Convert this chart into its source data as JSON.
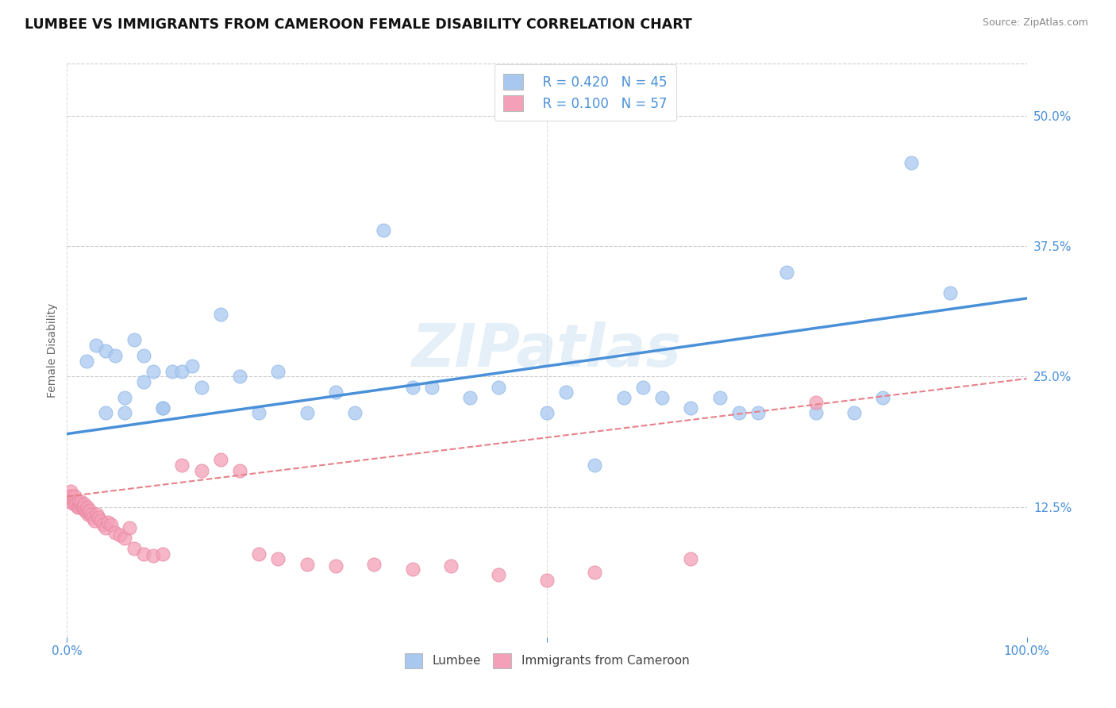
{
  "title": "LUMBEE VS IMMIGRANTS FROM CAMEROON FEMALE DISABILITY CORRELATION CHART",
  "source": "Source: ZipAtlas.com",
  "ylabel": "Female Disability",
  "ytick_labels": [
    "12.5%",
    "25.0%",
    "37.5%",
    "50.0%"
  ],
  "ytick_values": [
    0.125,
    0.25,
    0.375,
    0.5
  ],
  "xlim": [
    0.0,
    1.0
  ],
  "ylim": [
    0.0,
    0.55
  ],
  "legend_lumbee_R": "R = 0.420",
  "legend_lumbee_N": "N = 45",
  "legend_cameroon_R": "R = 0.100",
  "legend_cameroon_N": "N = 57",
  "lumbee_color": "#a8c8f0",
  "cameroon_color": "#f4a0b8",
  "lumbee_line_color": "#4a90d9",
  "cameroon_line_color": "#e8808a",
  "watermark": "ZIPatlas",
  "background_color": "#ffffff",
  "lumbee_x": [
    0.02,
    0.03,
    0.04,
    0.05,
    0.06,
    0.07,
    0.08,
    0.09,
    0.1,
    0.11,
    0.12,
    0.13,
    0.14,
    0.16,
    0.18,
    0.2,
    0.22,
    0.25,
    0.28,
    0.3,
    0.33,
    0.36,
    0.38,
    0.42,
    0.45,
    0.5,
    0.52,
    0.55,
    0.58,
    0.6,
    0.62,
    0.65,
    0.68,
    0.7,
    0.72,
    0.75,
    0.78,
    0.82,
    0.85,
    0.88,
    0.92,
    0.04,
    0.06,
    0.08,
    0.1
  ],
  "lumbee_y": [
    0.265,
    0.28,
    0.275,
    0.27,
    0.215,
    0.285,
    0.245,
    0.255,
    0.22,
    0.255,
    0.255,
    0.26,
    0.24,
    0.31,
    0.25,
    0.215,
    0.255,
    0.215,
    0.235,
    0.215,
    0.39,
    0.24,
    0.24,
    0.23,
    0.24,
    0.215,
    0.235,
    0.165,
    0.23,
    0.24,
    0.23,
    0.22,
    0.23,
    0.215,
    0.215,
    0.35,
    0.215,
    0.215,
    0.23,
    0.455,
    0.33,
    0.215,
    0.23,
    0.27,
    0.22
  ],
  "cameroon_x": [
    0.002,
    0.003,
    0.004,
    0.005,
    0.006,
    0.007,
    0.008,
    0.009,
    0.01,
    0.011,
    0.012,
    0.013,
    0.014,
    0.015,
    0.016,
    0.017,
    0.018,
    0.019,
    0.02,
    0.021,
    0.022,
    0.023,
    0.024,
    0.025,
    0.027,
    0.029,
    0.031,
    0.033,
    0.035,
    0.038,
    0.04,
    0.043,
    0.046,
    0.05,
    0.055,
    0.06,
    0.065,
    0.07,
    0.08,
    0.09,
    0.1,
    0.12,
    0.14,
    0.16,
    0.18,
    0.2,
    0.22,
    0.25,
    0.28,
    0.32,
    0.36,
    0.4,
    0.45,
    0.5,
    0.55,
    0.65,
    0.78
  ],
  "cameroon_y": [
    0.135,
    0.13,
    0.14,
    0.135,
    0.13,
    0.128,
    0.135,
    0.13,
    0.128,
    0.125,
    0.13,
    0.125,
    0.128,
    0.13,
    0.125,
    0.125,
    0.128,
    0.122,
    0.12,
    0.125,
    0.118,
    0.12,
    0.122,
    0.118,
    0.115,
    0.112,
    0.118,
    0.115,
    0.112,
    0.108,
    0.105,
    0.11,
    0.108,
    0.1,
    0.098,
    0.095,
    0.105,
    0.085,
    0.08,
    0.078,
    0.08,
    0.165,
    0.16,
    0.17,
    0.16,
    0.08,
    0.075,
    0.07,
    0.068,
    0.07,
    0.065,
    0.068,
    0.06,
    0.055,
    0.062,
    0.075,
    0.225
  ]
}
